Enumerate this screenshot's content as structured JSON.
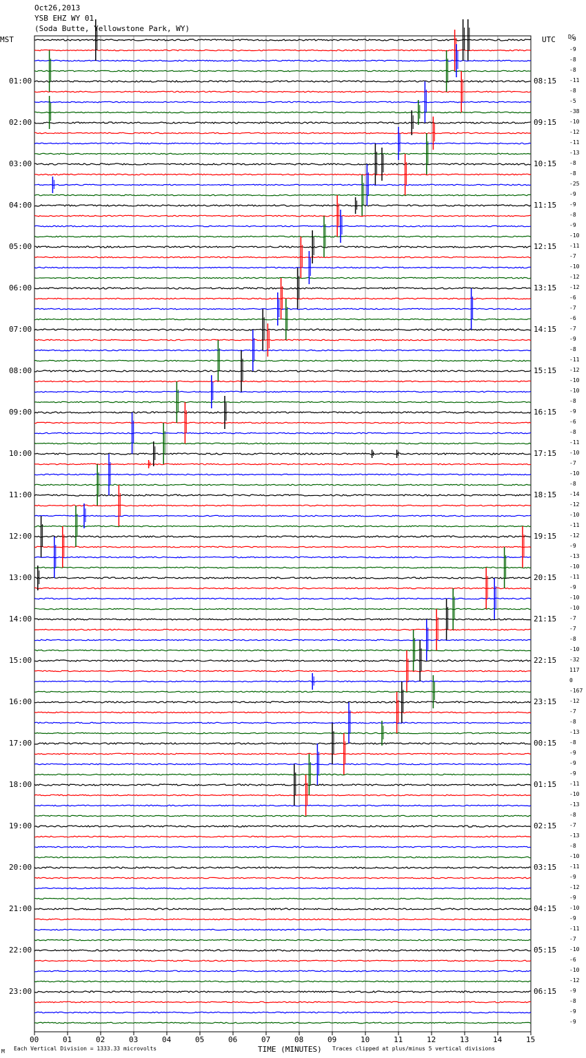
{
  "header": {
    "date": "Oct26,2013",
    "station": "YSB EHZ WY 01",
    "location": "(Soda Butte, Yellowstone Park, WY)"
  },
  "left_axis_label": "MST",
  "right_axis_label": "UTC",
  "dc_label": "DC",
  "x_axis_title": "TIME (MINUTES)",
  "footer_left": "Each Vertical Division = 1333.33 microvolts",
  "footer_right": "Traces clipped at plus/minus 5 vertical divisions",
  "footer_mark": "M",
  "colors": [
    "#000000",
    "#ff0000",
    "#0000ff",
    "#006400"
  ],
  "chart_data": {
    "type": "line",
    "title": "YSB EHZ WY 01",
    "xlabel": "TIME (MINUTES)",
    "x_ticks": [
      "00",
      "01",
      "02",
      "03",
      "04",
      "05",
      "06",
      "07",
      "08",
      "09",
      "10",
      "11",
      "12",
      "13",
      "14",
      "15"
    ],
    "xlim": [
      0,
      15
    ],
    "trace_count": 96,
    "traces_per_hour": 4,
    "left_hour_labels": [
      "01:00",
      "02:00",
      "03:00",
      "04:00",
      "05:00",
      "06:00",
      "07:00",
      "08:00",
      "09:00",
      "10:00",
      "11:00",
      "12:00",
      "13:00",
      "14:00",
      "15:00",
      "16:00",
      "17:00",
      "18:00",
      "19:00",
      "20:00",
      "21:00",
      "22:00",
      "23:00"
    ],
    "right_hour_labels": [
      "08:15",
      "09:15",
      "10:15",
      "11:15",
      "12:15",
      "13:15",
      "14:15",
      "15:15",
      "16:15",
      "17:15",
      "18:15",
      "19:15",
      "20:15",
      "21:15",
      "22:15",
      "23:15",
      "00:15",
      "01:15",
      "02:15",
      "03:15",
      "04:15",
      "05:15",
      "06:15"
    ],
    "dc_offsets": [
      "-9",
      "-9",
      "-8",
      "-8",
      "-11",
      "-8",
      "-5",
      "-38",
      "-10",
      "-12",
      "-11",
      "-13",
      "-8",
      "-8",
      "-25",
      "-9",
      "-9",
      "-8",
      "-9",
      "-10",
      "-11",
      "-7",
      "-10",
      "-12",
      "-12",
      "-6",
      "-7",
      "-6",
      "-7",
      "-9",
      "-8",
      "-11",
      "-12",
      "-10",
      "-10",
      "-8",
      "-9",
      "-6",
      "-8",
      "-11",
      "-10",
      "-7",
      "-10",
      "-8",
      "-14",
      "-12",
      "-10",
      "-11",
      "-12",
      "-9",
      "-13",
      "-10",
      "-11",
      "-9",
      "-10",
      "-10",
      "-7",
      "-7",
      "-8",
      "-10",
      "-32",
      "117",
      "0",
      "-167",
      "-12",
      "-7",
      "-8",
      "-13",
      "-8",
      "-9",
      "-9",
      "-9",
      "-11",
      "-10",
      "-13",
      "-8",
      "-7",
      "-13",
      "-8",
      "-10",
      "-11",
      "-9",
      "-12",
      "-9",
      "-10",
      "-9",
      "-11",
      "-7",
      "-10",
      "-6",
      "-10",
      "-12",
      "-9",
      "-8",
      "-9",
      "-9"
    ],
    "events": [
      {
        "trace": 0,
        "minute": 1.85,
        "amp": 5
      },
      {
        "trace": 0,
        "minute": 12.95,
        "amp": 5
      },
      {
        "trace": 0,
        "minute": 13.1,
        "amp": 5
      },
      {
        "trace": 1,
        "minute": 12.7,
        "amp": 5
      },
      {
        "trace": 2,
        "minute": 12.75,
        "amp": 4
      },
      {
        "trace": 3,
        "minute": 12.45,
        "amp": 5
      },
      {
        "trace": 3,
        "minute": 0.45,
        "amp": 5
      },
      {
        "trace": 5,
        "minute": 12.9,
        "amp": 5
      },
      {
        "trace": 6,
        "minute": 11.8,
        "amp": 5
      },
      {
        "trace": 7,
        "minute": 0.45,
        "amp": 4
      },
      {
        "trace": 7,
        "minute": 11.6,
        "amp": 3
      },
      {
        "trace": 8,
        "minute": 11.4,
        "amp": 3
      },
      {
        "trace": 9,
        "minute": 12.05,
        "amp": 4
      },
      {
        "trace": 10,
        "minute": 11.0,
        "amp": 4
      },
      {
        "trace": 11,
        "minute": 11.85,
        "amp": 5
      },
      {
        "trace": 12,
        "minute": 10.3,
        "amp": 5
      },
      {
        "trace": 12,
        "minute": 10.5,
        "amp": 4
      },
      {
        "trace": 13,
        "minute": 11.2,
        "amp": 5
      },
      {
        "trace": 14,
        "minute": 10.05,
        "amp": 5
      },
      {
        "trace": 14,
        "minute": 0.55,
        "amp": 2
      },
      {
        "trace": 15,
        "minute": 9.9,
        "amp": 5
      },
      {
        "trace": 16,
        "minute": 9.7,
        "amp": 2
      },
      {
        "trace": 17,
        "minute": 9.15,
        "amp": 5
      },
      {
        "trace": 18,
        "minute": 9.25,
        "amp": 4
      },
      {
        "trace": 19,
        "minute": 8.75,
        "amp": 5
      },
      {
        "trace": 20,
        "minute": 8.4,
        "amp": 4
      },
      {
        "trace": 21,
        "minute": 8.05,
        "amp": 5
      },
      {
        "trace": 22,
        "minute": 8.3,
        "amp": 4
      },
      {
        "trace": 24,
        "minute": 7.95,
        "amp": 5
      },
      {
        "trace": 25,
        "minute": 7.45,
        "amp": 5
      },
      {
        "trace": 26,
        "minute": 13.2,
        "amp": 5
      },
      {
        "trace": 26,
        "minute": 7.35,
        "amp": 4
      },
      {
        "trace": 27,
        "minute": 7.6,
        "amp": 5
      },
      {
        "trace": 28,
        "minute": 6.9,
        "amp": 5
      },
      {
        "trace": 29,
        "minute": 7.05,
        "amp": 4
      },
      {
        "trace": 30,
        "minute": 6.6,
        "amp": 5
      },
      {
        "trace": 31,
        "minute": 5.55,
        "amp": 5
      },
      {
        "trace": 32,
        "minute": 6.25,
        "amp": 5
      },
      {
        "trace": 34,
        "minute": 5.35,
        "amp": 4
      },
      {
        "trace": 35,
        "minute": 4.3,
        "amp": 5
      },
      {
        "trace": 36,
        "minute": 5.75,
        "amp": 4
      },
      {
        "trace": 37,
        "minute": 4.55,
        "amp": 5
      },
      {
        "trace": 38,
        "minute": 2.95,
        "amp": 5
      },
      {
        "trace": 39,
        "minute": 3.9,
        "amp": 5
      },
      {
        "trace": 40,
        "minute": 3.6,
        "amp": 3
      },
      {
        "trace": 40,
        "minute": 10.2,
        "amp": 1
      },
      {
        "trace": 40,
        "minute": 10.95,
        "amp": 1
      },
      {
        "trace": 41,
        "minute": 3.45,
        "amp": 1
      },
      {
        "trace": 42,
        "minute": 2.25,
        "amp": 5
      },
      {
        "trace": 43,
        "minute": 1.9,
        "amp": 5
      },
      {
        "trace": 45,
        "minute": 2.55,
        "amp": 5
      },
      {
        "trace": 46,
        "minute": 1.5,
        "amp": 3
      },
      {
        "trace": 47,
        "minute": 1.25,
        "amp": 5
      },
      {
        "trace": 48,
        "minute": 0.2,
        "amp": 5
      },
      {
        "trace": 49,
        "minute": 0.85,
        "amp": 5
      },
      {
        "trace": 49,
        "minute": 14.75,
        "amp": 5
      },
      {
        "trace": 50,
        "minute": 0.6,
        "amp": 5
      },
      {
        "trace": 51,
        "minute": 14.2,
        "amp": 5
      },
      {
        "trace": 52,
        "minute": 0.1,
        "amp": 3
      },
      {
        "trace": 53,
        "minute": 13.65,
        "amp": 5
      },
      {
        "trace": 54,
        "minute": 13.9,
        "amp": 5
      },
      {
        "trace": 55,
        "minute": 12.65,
        "amp": 5
      },
      {
        "trace": 56,
        "minute": 12.45,
        "amp": 5
      },
      {
        "trace": 57,
        "minute": 12.15,
        "amp": 5
      },
      {
        "trace": 58,
        "minute": 11.85,
        "amp": 5
      },
      {
        "trace": 59,
        "minute": 11.45,
        "amp": 5
      },
      {
        "trace": 60,
        "minute": 11.65,
        "amp": 5
      },
      {
        "trace": 61,
        "minute": 11.25,
        "amp": 5
      },
      {
        "trace": 62,
        "minute": 8.4,
        "amp": 2
      },
      {
        "trace": 63,
        "minute": 12.05,
        "amp": 4
      },
      {
        "trace": 64,
        "minute": 11.1,
        "amp": 5
      },
      {
        "trace": 65,
        "minute": 10.95,
        "amp": 5
      },
      {
        "trace": 66,
        "minute": 9.5,
        "amp": 5
      },
      {
        "trace": 67,
        "minute": 10.5,
        "amp": 3
      },
      {
        "trace": 68,
        "minute": 9.0,
        "amp": 5
      },
      {
        "trace": 69,
        "minute": 9.35,
        "amp": 5
      },
      {
        "trace": 70,
        "minute": 8.55,
        "amp": 5
      },
      {
        "trace": 71,
        "minute": 8.3,
        "amp": 5
      },
      {
        "trace": 72,
        "minute": 7.85,
        "amp": 5
      },
      {
        "trace": 73,
        "minute": 8.2,
        "amp": 5
      }
    ]
  }
}
